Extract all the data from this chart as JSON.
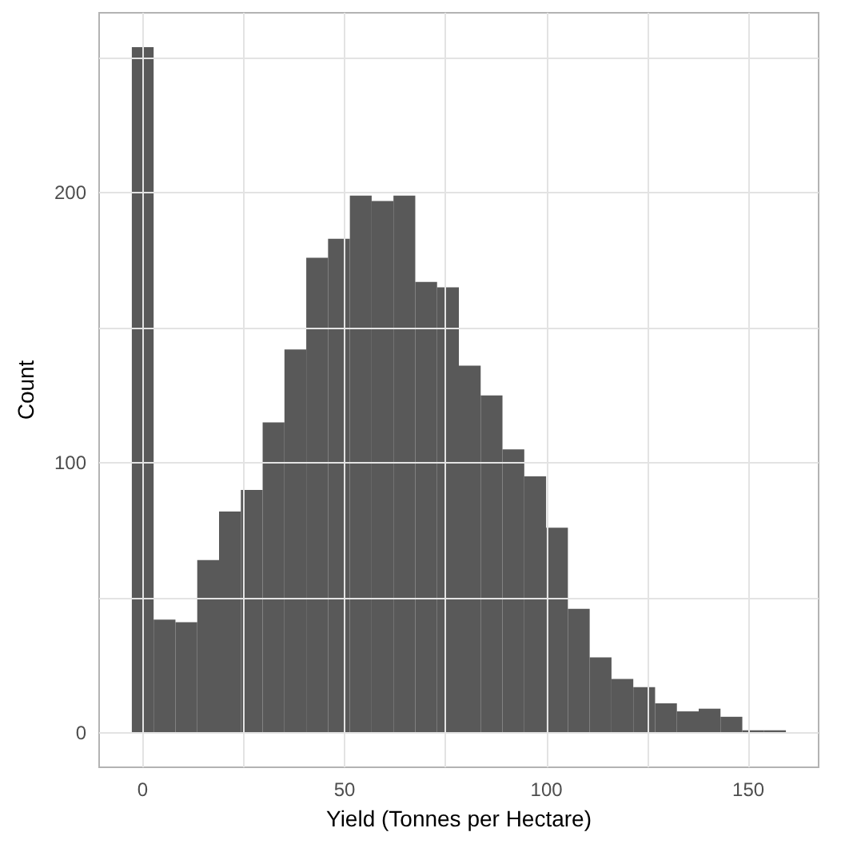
{
  "chart_data": {
    "type": "histogram",
    "xlabel": "Yield (Tonnes per Hectare)",
    "ylabel": "Count",
    "bins": [
      -2.7,
      2.7,
      8.1,
      13.5,
      18.9,
      24.3,
      29.7,
      35.1,
      40.5,
      45.9,
      51.3,
      56.7,
      62.1,
      67.5,
      72.9,
      78.3,
      83.7,
      89.1,
      94.5,
      99.9,
      105.3,
      110.7,
      116.1,
      121.5,
      126.9,
      132.3,
      137.7,
      143.1,
      148.5,
      153.9,
      159.3
    ],
    "values": [
      254,
      42,
      41,
      64,
      82,
      90,
      115,
      142,
      176,
      183,
      199,
      197,
      199,
      167,
      165,
      136,
      125,
      105,
      95,
      76,
      46,
      28,
      20,
      17,
      11,
      8,
      9,
      6,
      1,
      1
    ],
    "color": "#595959",
    "xlim": [
      -10.8,
      167.4
    ],
    "xticks": [
      0,
      {
        "value": 25,
        "label": null
      },
      50,
      {
        "value": 75,
        "label": null
      },
      100,
      {
        "value": 125,
        "label": null
      },
      150
    ],
    "ylim": [
      -12.7,
      266.7
    ],
    "yticks": [
      0,
      {
        "value": 50,
        "label": null
      },
      100,
      {
        "value": 150,
        "label": null
      },
      200,
      {
        "value": 250,
        "label": null
      }
    ],
    "grid": true
  }
}
